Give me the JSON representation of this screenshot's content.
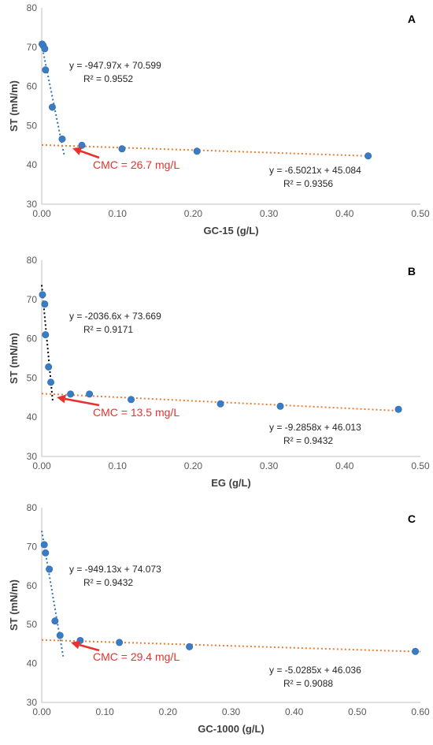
{
  "chart_data": [
    {
      "type": "scatter",
      "panel_label": "A",
      "xlabel": "GC-15 (g/L)",
      "ylabel": "ST (mN/m)",
      "xlim": [
        0,
        0.5
      ],
      "ylim": [
        30,
        80
      ],
      "xticks": [
        "0.00",
        "0.10",
        "0.20",
        "0.30",
        "0.40",
        "0.50"
      ],
      "yticks": [
        "30",
        "40",
        "50",
        "60",
        "70",
        "80"
      ],
      "grid": false,
      "series": [
        {
          "x": [
            0.0005,
            0.002,
            0.004,
            0.005,
            0.014,
            0.027,
            0.053,
            0.106,
            0.205,
            0.431
          ],
          "y": [
            70.8,
            70.4,
            69.6,
            64.2,
            54.7,
            46.6,
            45.0,
            44.1,
            43.5,
            42.3
          ],
          "color": "#3a7cc4"
        }
      ],
      "fits": [
        {
          "slope": -947.97,
          "intercept": 70.599,
          "x": [
            0,
            0.03
          ],
          "color": "#2e75b6",
          "label": "y = -947.97x + 70.599",
          "r2": "R² = 0.9552"
        },
        {
          "slope": -6.5021,
          "intercept": 45.084,
          "x": [
            0,
            0.43
          ],
          "color": "#ed7d31",
          "label": "y = -6.5021x + 45.084",
          "r2": "R² = 0.9356"
        }
      ],
      "cmc": {
        "label": "CMC = 26.7 mg/L",
        "x": 0.0267
      }
    },
    {
      "type": "scatter",
      "panel_label": "B",
      "xlabel": "EG (g/L)",
      "ylabel": "ST (mN/m)",
      "xlim": [
        0,
        0.5
      ],
      "ylim": [
        30,
        80
      ],
      "xticks": [
        "0.00",
        "0.10",
        "0.20",
        "0.30",
        "0.40",
        "0.50"
      ],
      "yticks": [
        "30",
        "40",
        "50",
        "60",
        "70",
        "80"
      ],
      "grid": false,
      "series": [
        {
          "x": [
            0.001,
            0.004,
            0.005,
            0.009,
            0.012,
            0.038,
            0.063,
            0.118,
            0.236,
            0.315,
            0.471
          ],
          "y": [
            71.2,
            68.8,
            61.0,
            52.8,
            48.9,
            45.9,
            45.9,
            44.5,
            43.4,
            42.8,
            42.0
          ],
          "color": "#3a7cc4"
        }
      ],
      "fits": [
        {
          "slope": -2036.6,
          "intercept": 73.669,
          "x": [
            0,
            0.0145
          ],
          "color": "#000000",
          "label": "y = -2036.6x + 73.669",
          "r2": "R² = 0.9171"
        },
        {
          "slope": -9.2858,
          "intercept": 46.013,
          "x": [
            0,
            0.47
          ],
          "color": "#ed7d31",
          "label": "y = -9.2858x + 46.013",
          "r2": "R² = 0.9432"
        }
      ],
      "cmc": {
        "label": "CMC = 13.5 mg/L",
        "x": 0.0135
      }
    },
    {
      "type": "scatter",
      "panel_label": "C",
      "xlabel": "GC-1000 (g/L)",
      "ylabel": "ST (mN/m)",
      "xlim": [
        0,
        0.6
      ],
      "ylim": [
        30,
        80
      ],
      "xticks": [
        "0.00",
        "0.10",
        "0.20",
        "0.30",
        "0.40",
        "0.50",
        "0.60"
      ],
      "yticks": [
        "30",
        "40",
        "50",
        "60",
        "70",
        "80"
      ],
      "grid": false,
      "series": [
        {
          "x": [
            0.004,
            0.006,
            0.012,
            0.021,
            0.029,
            0.061,
            0.123,
            0.234,
            0.592
          ],
          "y": [
            70.5,
            68.4,
            64.2,
            50.9,
            47.2,
            45.9,
            45.4,
            44.3,
            43.1
          ],
          "color": "#3a7cc4"
        }
      ],
      "fits": [
        {
          "slope": -949.13,
          "intercept": 74.073,
          "x": [
            0,
            0.034
          ],
          "color": "#2e75b6",
          "label": "y = -949.13x + 74.073",
          "r2": "R² = 0.9432"
        },
        {
          "slope": -5.0285,
          "intercept": 46.036,
          "x": [
            0,
            0.6
          ],
          "color": "#ed7d31",
          "label": "y = -5.0285x + 46.036",
          "r2": "R² = 0.9088"
        }
      ],
      "cmc": {
        "label": "CMC = 29.4 mg/L",
        "x": 0.0294
      }
    }
  ]
}
